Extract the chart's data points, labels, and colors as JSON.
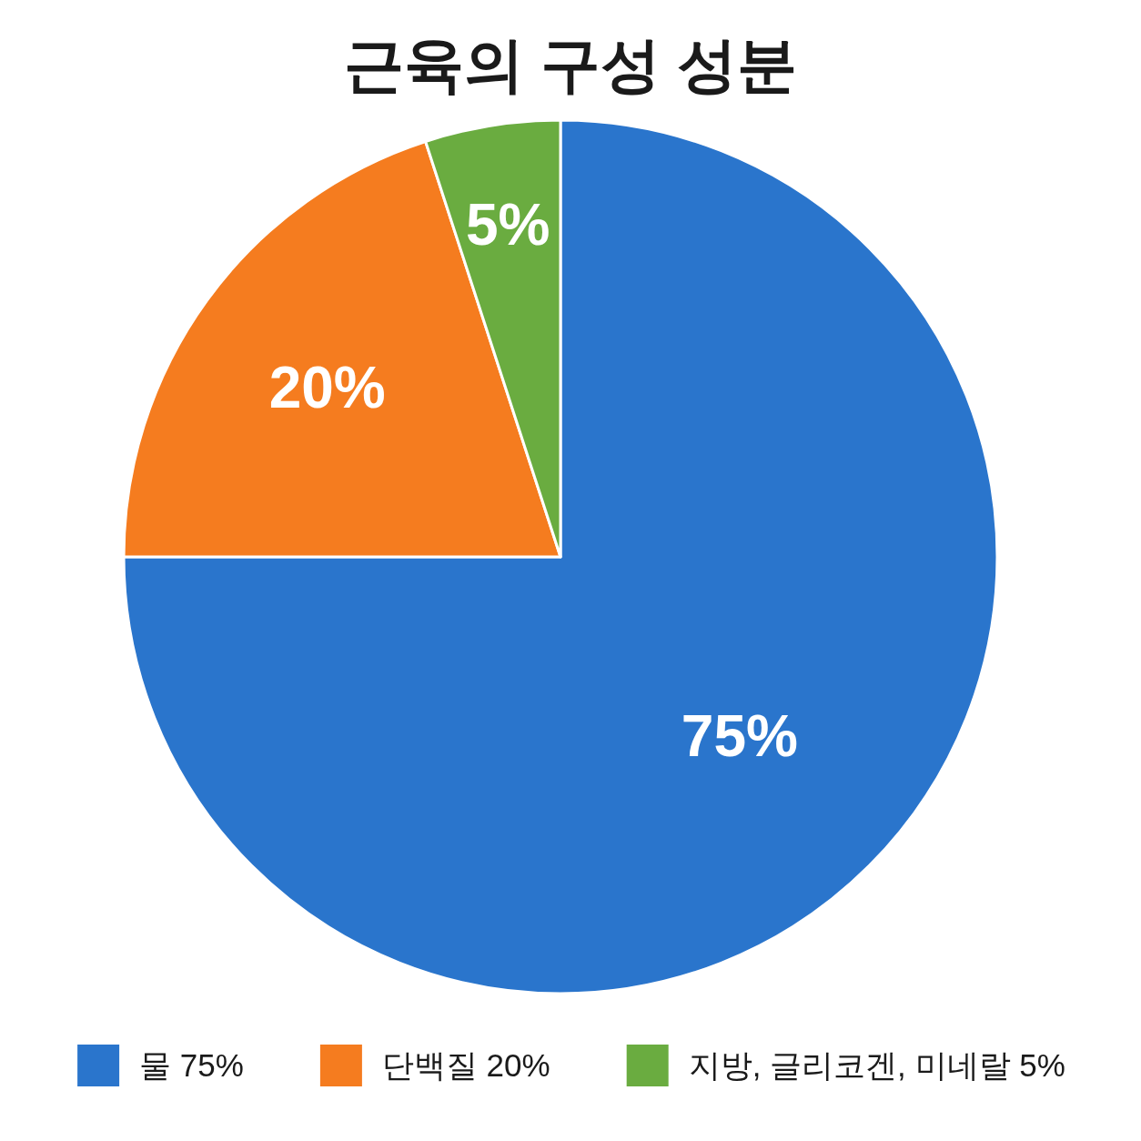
{
  "chart_data": {
    "type": "pie",
    "title": "근육의 구성 성분",
    "categories": [
      "물 75%",
      "단백질 20%",
      "지방, 글리코겐, 미네랄 5%"
    ],
    "values": [
      75,
      20,
      5
    ],
    "colors": [
      "#2a75cc",
      "#f57c1f",
      "#6aac40"
    ],
    "value_labels": [
      "75%",
      "20%",
      "5%"
    ],
    "legend": "bottom"
  }
}
